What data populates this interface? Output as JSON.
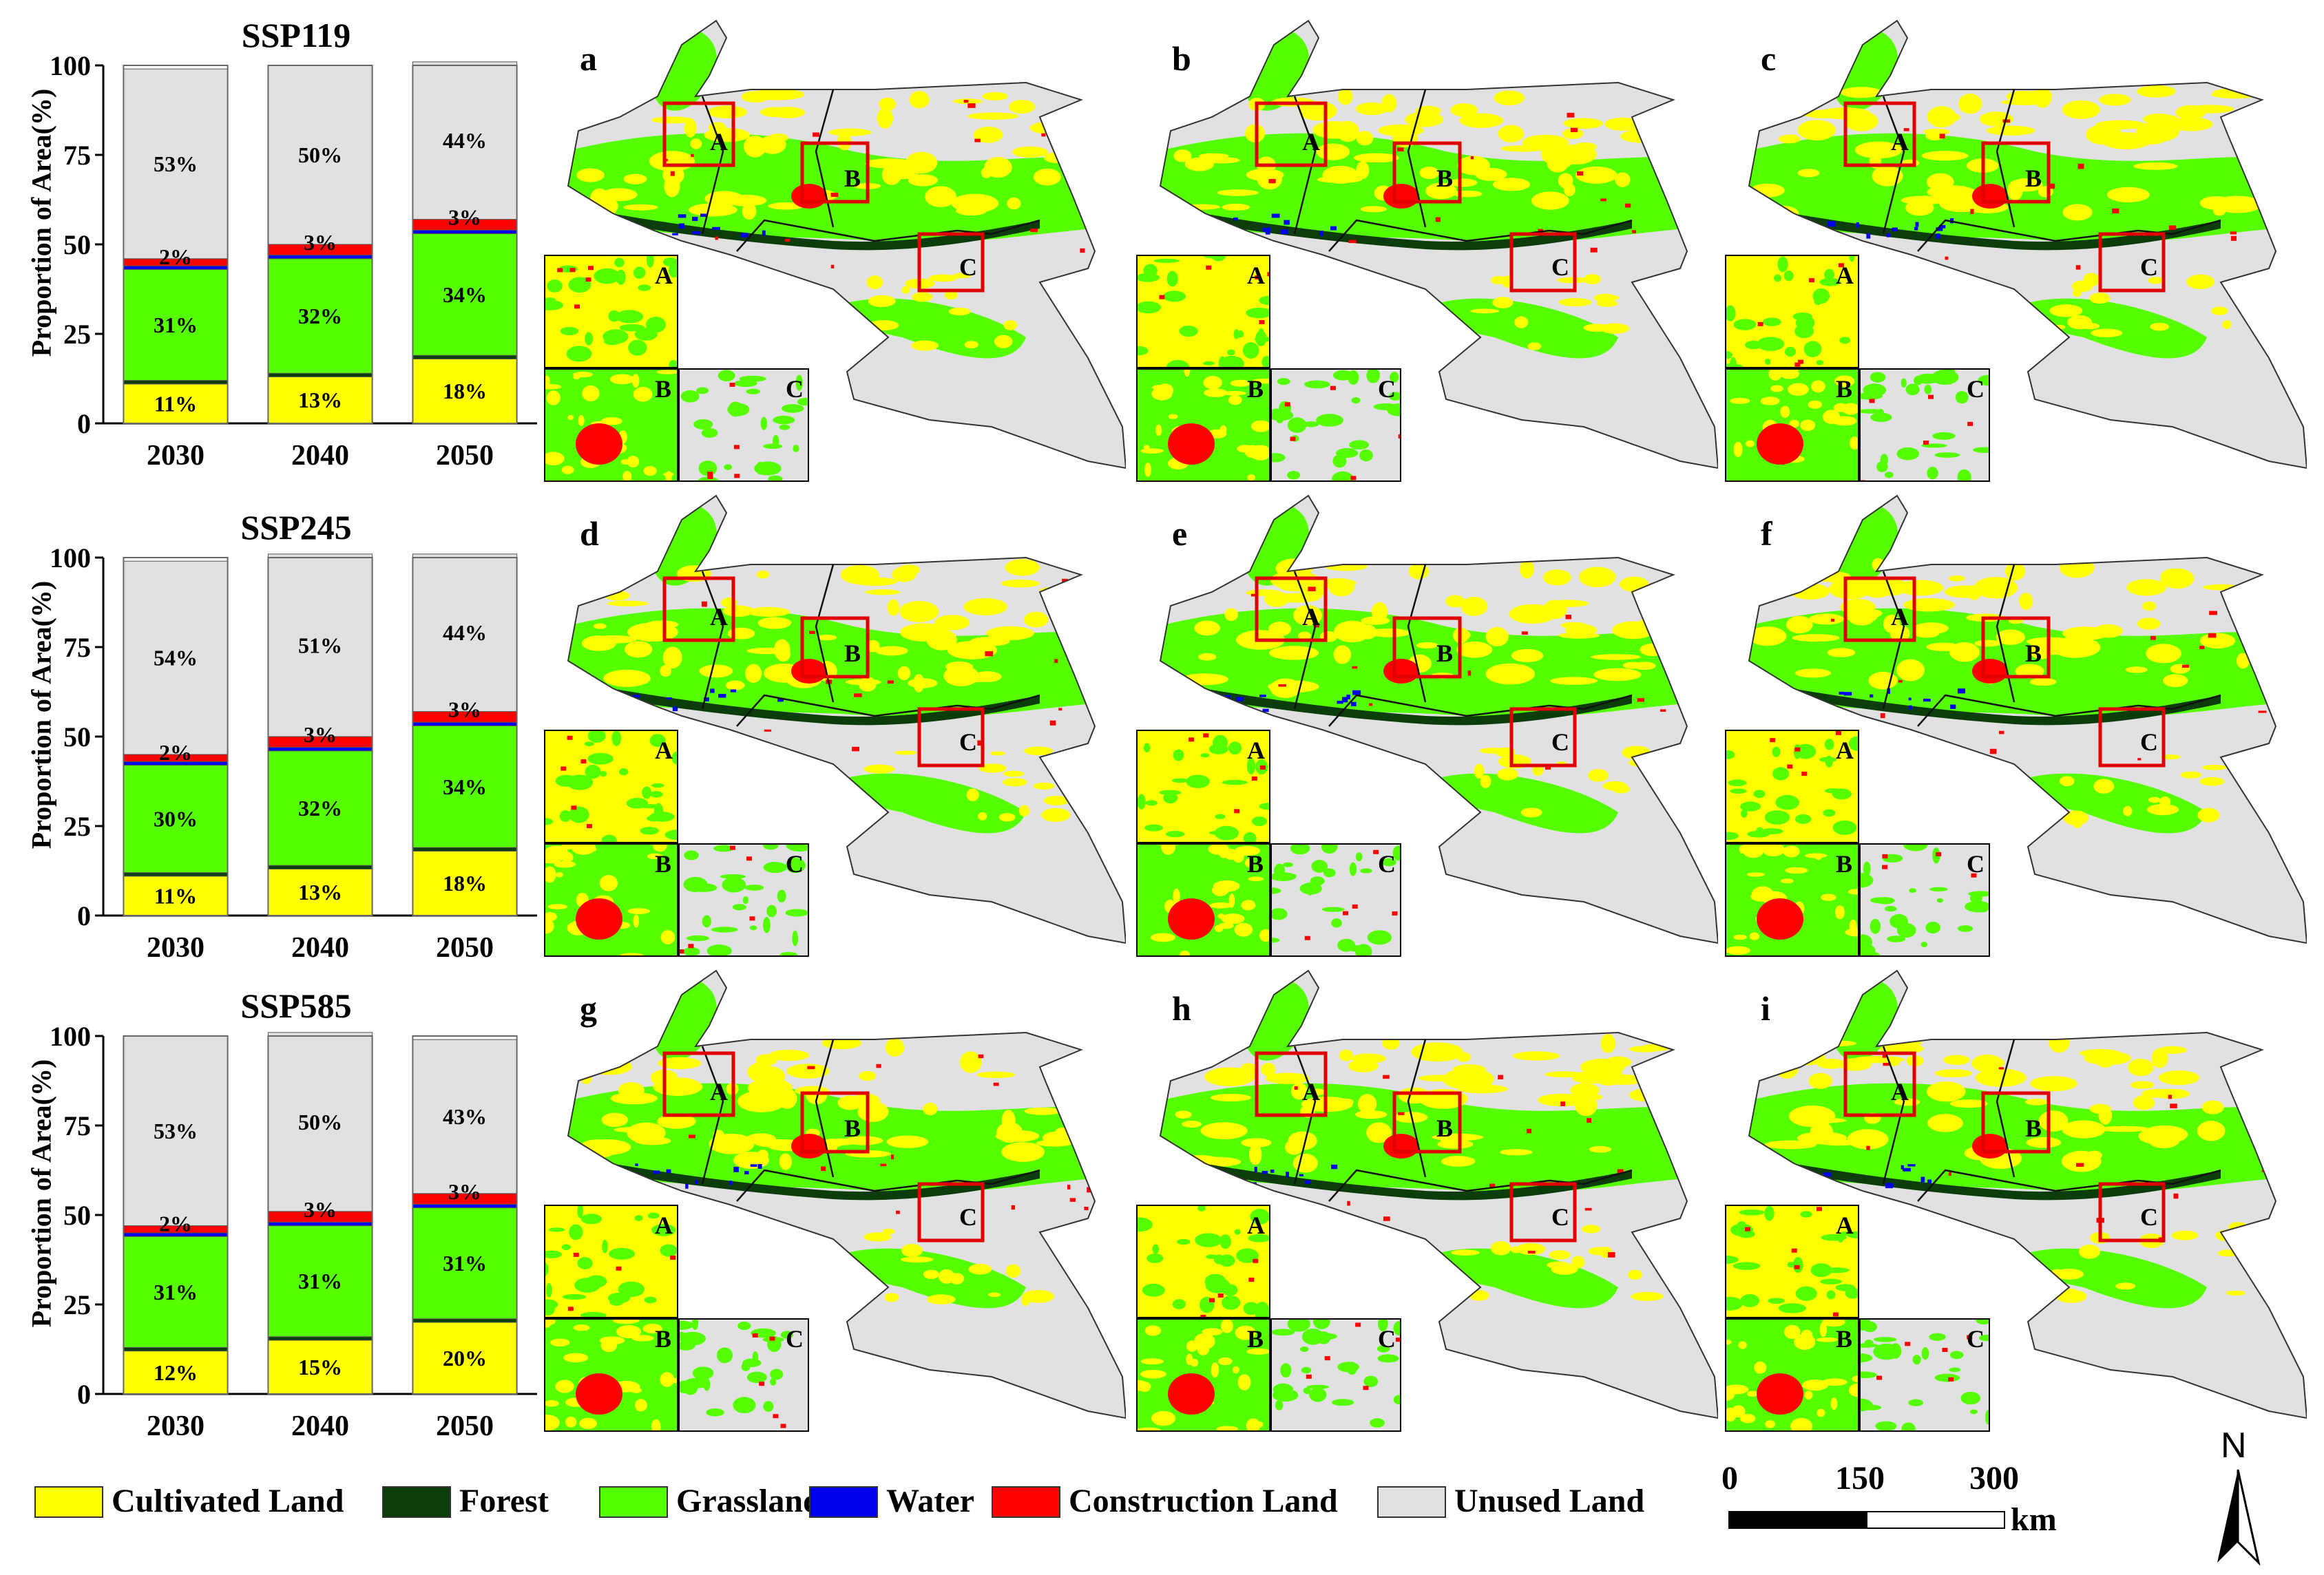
{
  "colors": {
    "cultivated": "#ffff00",
    "forest": "#0b3d0b",
    "grassland": "#55ff00",
    "water": "#0000ee",
    "construction": "#ff0000",
    "unused": "#e1e1e1"
  },
  "chart_data": [
    {
      "type": "bar",
      "stacked": true,
      "title": "SSP119",
      "ylabel": "Proportion of Area(%)",
      "ylim": [
        0,
        100
      ],
      "yticks": [
        0,
        25,
        50,
        75,
        100
      ],
      "categories": [
        "2030",
        "2040",
        "2050"
      ],
      "series": [
        {
          "name": "Cultivated Land",
          "values": [
            11,
            13,
            18
          ],
          "labels": [
            "11%",
            "13%",
            "18%"
          ]
        },
        {
          "name": "Forest",
          "values": [
            1,
            1,
            1
          ],
          "labels": [
            "",
            "",
            ""
          ]
        },
        {
          "name": "Grassland",
          "values": [
            31,
            32,
            34
          ],
          "labels": [
            "31%",
            "32%",
            "34%"
          ]
        },
        {
          "name": "Water",
          "values": [
            1,
            1,
            1
          ],
          "labels": [
            "",
            "",
            ""
          ]
        },
        {
          "name": "Construction Land",
          "values": [
            2,
            3,
            3
          ],
          "labels": [
            "2%",
            "3%",
            "3%"
          ]
        },
        {
          "name": "Unused Land",
          "values": [
            53,
            50,
            44
          ],
          "labels": [
            "53%",
            "50%",
            "44%"
          ]
        }
      ]
    },
    {
      "type": "bar",
      "stacked": true,
      "title": "SSP245",
      "ylabel": "Proportion of Area(%)",
      "ylim": [
        0,
        100
      ],
      "yticks": [
        0,
        25,
        50,
        75,
        100
      ],
      "categories": [
        "2030",
        "2040",
        "2050"
      ],
      "series": [
        {
          "name": "Cultivated Land",
          "values": [
            11,
            13,
            18
          ],
          "labels": [
            "11%",
            "13%",
            "18%"
          ]
        },
        {
          "name": "Forest",
          "values": [
            1,
            1,
            1
          ],
          "labels": [
            "",
            "",
            ""
          ]
        },
        {
          "name": "Grassland",
          "values": [
            30,
            32,
            34
          ],
          "labels": [
            "30%",
            "32%",
            "34%"
          ]
        },
        {
          "name": "Water",
          "values": [
            1,
            1,
            1
          ],
          "labels": [
            "",
            "",
            ""
          ]
        },
        {
          "name": "Construction Land",
          "values": [
            2,
            3,
            3
          ],
          "labels": [
            "2%",
            "3%",
            "3%"
          ]
        },
        {
          "name": "Unused Land",
          "values": [
            54,
            51,
            44
          ],
          "labels": [
            "54%",
            "51%",
            "44%"
          ]
        }
      ]
    },
    {
      "type": "bar",
      "stacked": true,
      "title": "SSP585",
      "ylabel": "Proportion of Area(%)",
      "ylim": [
        0,
        100
      ],
      "yticks": [
        0,
        25,
        50,
        75,
        100
      ],
      "categories": [
        "2030",
        "2040",
        "2050"
      ],
      "series": [
        {
          "name": "Cultivated Land",
          "values": [
            12,
            15,
            20
          ],
          "labels": [
            "12%",
            "15%",
            "20%"
          ]
        },
        {
          "name": "Forest",
          "values": [
            1,
            1,
            1
          ],
          "labels": [
            "",
            "",
            ""
          ]
        },
        {
          "name": "Grassland",
          "values": [
            31,
            31,
            31
          ],
          "labels": [
            "31%",
            "31%",
            "31%"
          ]
        },
        {
          "name": "Water",
          "values": [
            1,
            1,
            1
          ],
          "labels": [
            "",
            "",
            ""
          ]
        },
        {
          "name": "Construction Land",
          "values": [
            2,
            3,
            3
          ],
          "labels": [
            "2%",
            "3%",
            "3%"
          ]
        },
        {
          "name": "Unused Land",
          "values": [
            53,
            50,
            43
          ],
          "labels": [
            "53%",
            "50%",
            "43%"
          ]
        }
      ]
    }
  ],
  "maps": {
    "labels": [
      "a",
      "b",
      "c",
      "d",
      "e",
      "f",
      "g",
      "h",
      "i"
    ],
    "zone_labels": [
      "A",
      "B",
      "C"
    ]
  },
  "legend": [
    {
      "key": "cultivated",
      "label": "Cultivated Land"
    },
    {
      "key": "forest",
      "label": "Forest"
    },
    {
      "key": "grassland",
      "label": "Grassland"
    },
    {
      "key": "water",
      "label": "Water"
    },
    {
      "key": "construction",
      "label": "Construction Land"
    },
    {
      "key": "unused",
      "label": "Unused Land"
    }
  ],
  "scalebar": {
    "ticks": [
      "0",
      "150",
      "300"
    ],
    "unit": "km"
  },
  "north": {
    "letter": "N"
  }
}
